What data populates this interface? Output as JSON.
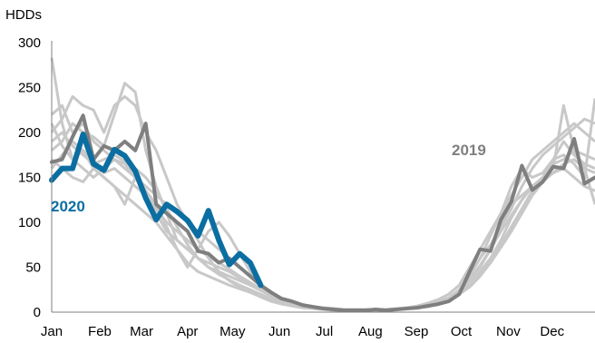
{
  "chart_data": {
    "type": "line",
    "title": "",
    "ylabel": "HDDs",
    "xlabel": "",
    "ylim": [
      0,
      300
    ],
    "xlim": [
      1,
      53
    ],
    "y_ticks": [
      "0",
      "50",
      "100",
      "150",
      "200",
      "250",
      "300"
    ],
    "x_ticks": [
      {
        "label": "Jan",
        "week": 1
      },
      {
        "label": "Feb",
        "week": 5.6
      },
      {
        "label": "Mar",
        "week": 9.6
      },
      {
        "label": "Apr",
        "week": 14.0
      },
      {
        "label": "May",
        "week": 18.3
      },
      {
        "label": "Jun",
        "week": 22.8
      },
      {
        "label": "Jul",
        "week": 27.1
      },
      {
        "label": "Aug",
        "week": 31.5
      },
      {
        "label": "Sep",
        "week": 35.9
      },
      {
        "label": "Oct",
        "week": 40.2
      },
      {
        "label": "Nov",
        "week": 44.7
      },
      {
        "label": "Dec",
        "week": 48.9
      }
    ],
    "grid": false,
    "colors": {
      "series_2020": "#0b6ea2",
      "series_2019": "#7f7f7f",
      "other_years": "#c8c8c8",
      "axis": "#7f7f7f"
    },
    "series": [
      {
        "name": "2020",
        "highlight": "primary",
        "x": [
          1,
          2,
          3,
          4,
          5,
          6,
          7,
          8,
          9,
          10,
          11,
          12,
          13,
          14,
          15,
          16,
          17,
          18,
          19,
          20,
          21
        ],
        "y": [
          147,
          160,
          160,
          198,
          165,
          158,
          181,
          174,
          157,
          127,
          103,
          120,
          112,
          102,
          85,
          113,
          80,
          53,
          65,
          55,
          30
        ]
      },
      {
        "name": "2019",
        "highlight": "secondary",
        "x": [
          1,
          2,
          3,
          4,
          5,
          6,
          7,
          8,
          9,
          10,
          11,
          12,
          13,
          14,
          15,
          16,
          17,
          18,
          19,
          20,
          21,
          22,
          23,
          24,
          25,
          26,
          27,
          28,
          29,
          30,
          31,
          32,
          33,
          34,
          35,
          36,
          37,
          38,
          39,
          40,
          41,
          42,
          43,
          44,
          45,
          46,
          47,
          48,
          49,
          50,
          51,
          52,
          53
        ],
        "y": [
          167,
          170,
          195,
          219,
          170,
          185,
          180,
          190,
          180,
          210,
          120,
          110,
          100,
          90,
          68,
          65,
          55,
          60,
          50,
          40,
          30,
          22,
          15,
          12,
          8,
          6,
          4,
          3,
          2,
          2,
          2,
          3,
          2,
          3,
          4,
          5,
          7,
          9,
          12,
          20,
          45,
          70,
          68,
          103,
          123,
          163,
          136,
          145,
          162,
          160,
          193,
          143,
          150
        ]
      },
      {
        "x": [
          1,
          2,
          3,
          4,
          5,
          6,
          7,
          8,
          9,
          10,
          11,
          12,
          13,
          14,
          15,
          16,
          17,
          18,
          19,
          20,
          21,
          22,
          23,
          24,
          25,
          26,
          27,
          28,
          29,
          30,
          31,
          32,
          33,
          34,
          35,
          36,
          37,
          38,
          39,
          40,
          41,
          42,
          43,
          44,
          45,
          46,
          47,
          48,
          49,
          50,
          51,
          52,
          53
        ],
        "y": [
          283,
          210,
          170,
          180,
          160,
          150,
          140,
          120,
          150,
          130,
          110,
          90,
          80,
          70,
          60,
          50,
          45,
          40,
          35,
          30,
          25,
          20,
          15,
          12,
          8,
          6,
          5,
          4,
          3,
          3,
          3,
          3,
          3,
          4,
          5,
          6,
          8,
          10,
          15,
          25,
          40,
          60,
          85,
          110,
          140,
          160,
          150,
          155,
          170,
          190,
          175,
          165,
          160
        ]
      },
      {
        "x": [
          1,
          2,
          3,
          4,
          5,
          6,
          7,
          8,
          9,
          10,
          11,
          12,
          13,
          14,
          15,
          16,
          17,
          18,
          19,
          20,
          21,
          22,
          23,
          24,
          25,
          26,
          27,
          28,
          29,
          30,
          31,
          32,
          33,
          34,
          35,
          36,
          37,
          38,
          39,
          40,
          41,
          42,
          43,
          44,
          45,
          46,
          47,
          48,
          49,
          50,
          51,
          52,
          53
        ],
        "y": [
          220,
          230,
          200,
          210,
          190,
          180,
          170,
          160,
          150,
          140,
          130,
          120,
          110,
          100,
          90,
          80,
          70,
          60,
          50,
          40,
          30,
          20,
          14,
          10,
          7,
          5,
          4,
          3,
          2,
          2,
          2,
          2,
          3,
          3,
          5,
          7,
          10,
          14,
          20,
          30,
          50,
          70,
          90,
          110,
          130,
          150,
          170,
          180,
          190,
          200,
          210,
          200,
          190
        ]
      },
      {
        "x": [
          1,
          2,
          3,
          4,
          5,
          6,
          7,
          8,
          9,
          10,
          11,
          12,
          13,
          14,
          15,
          16,
          17,
          18,
          19,
          20,
          21,
          22,
          23,
          24,
          25,
          26,
          27,
          28,
          29,
          30,
          31,
          32,
          33,
          34,
          35,
          36,
          37,
          38,
          39,
          40,
          41,
          42,
          43,
          44,
          45,
          46,
          47,
          48,
          49,
          50,
          51,
          52,
          53
        ],
        "y": [
          200,
          215,
          240,
          230,
          225,
          200,
          230,
          240,
          230,
          200,
          180,
          150,
          120,
          100,
          80,
          60,
          45,
          35,
          28,
          22,
          17,
          12,
          9,
          7,
          5,
          4,
          3,
          2,
          2,
          2,
          2,
          2,
          2,
          3,
          4,
          6,
          8,
          11,
          16,
          25,
          40,
          60,
          75,
          95,
          115,
          140,
          160,
          175,
          185,
          195,
          205,
          215,
          210
        ]
      },
      {
        "x": [
          1,
          2,
          3,
          4,
          5,
          6,
          7,
          8,
          9,
          10,
          11,
          12,
          13,
          14,
          15,
          16,
          17,
          18,
          19,
          20,
          21,
          22,
          23,
          24,
          25,
          26,
          27,
          28,
          29,
          30,
          31,
          32,
          33,
          34,
          35,
          36,
          37,
          38,
          39,
          40,
          41,
          42,
          43,
          44,
          45,
          46,
          47,
          48,
          49,
          50,
          51,
          52,
          53
        ],
        "y": [
          180,
          190,
          210,
          200,
          195,
          185,
          220,
          255,
          245,
          180,
          140,
          110,
          80,
          70,
          60,
          55,
          50,
          45,
          38,
          30,
          24,
          18,
          14,
          10,
          7,
          5,
          4,
          3,
          2,
          2,
          2,
          2,
          2,
          3,
          4,
          5,
          7,
          10,
          14,
          22,
          35,
          50,
          70,
          100,
          120,
          130,
          140,
          150,
          160,
          230,
          180,
          160,
          155
        ]
      },
      {
        "x": [
          1,
          2,
          3,
          4,
          5,
          6,
          7,
          8,
          9,
          10,
          11,
          12,
          13,
          14,
          15,
          16,
          17,
          18,
          19,
          20,
          21,
          22,
          23,
          24,
          25,
          26,
          27,
          28,
          29,
          30,
          31,
          32,
          33,
          34,
          35,
          36,
          37,
          38,
          39,
          40,
          41,
          42,
          43,
          44,
          45,
          46,
          47,
          48,
          49,
          50,
          51,
          52,
          53
        ],
        "y": [
          210,
          185,
          170,
          160,
          150,
          160,
          170,
          165,
          150,
          135,
          120,
          95,
          70,
          50,
          70,
          90,
          100,
          85,
          65,
          45,
          28,
          18,
          12,
          8,
          6,
          5,
          4,
          3,
          3,
          3,
          2,
          2,
          3,
          3,
          4,
          5,
          6,
          9,
          13,
          20,
          30,
          45,
          60,
          80,
          105,
          125,
          140,
          150,
          155,
          165,
          170,
          160,
          120
        ]
      },
      {
        "x": [
          1,
          2,
          3,
          4,
          5,
          6,
          7,
          8,
          9,
          10,
          11,
          12,
          13,
          14,
          15,
          16,
          17,
          18,
          19,
          20,
          21,
          22,
          23,
          24,
          25,
          26,
          27,
          28,
          29,
          30,
          31,
          32,
          33,
          34,
          35,
          36,
          37,
          38,
          39,
          40,
          41,
          42,
          43,
          44,
          45,
          46,
          47,
          48,
          49,
          50,
          51,
          52,
          53
        ],
        "y": [
          160,
          175,
          190,
          180,
          170,
          155,
          160,
          150,
          140,
          130,
          115,
          100,
          90,
          80,
          70,
          62,
          55,
          48,
          40,
          33,
          26,
          19,
          13,
          9,
          6,
          4,
          3,
          3,
          2,
          2,
          2,
          2,
          2,
          3,
          4,
          6,
          9,
          12,
          16,
          24,
          36,
          52,
          70,
          90,
          108,
          125,
          140,
          150,
          170,
          175,
          165,
          150,
          238
        ]
      },
      {
        "x": [
          1,
          2,
          3,
          4,
          5,
          6,
          7,
          8,
          9,
          10,
          11,
          12,
          13,
          14,
          15,
          16,
          17,
          18,
          19,
          20,
          21,
          22,
          23,
          24,
          25,
          26,
          27,
          28,
          29,
          30,
          31,
          32,
          33,
          34,
          35,
          36,
          37,
          38,
          39,
          40,
          41,
          42,
          43,
          44,
          45,
          46,
          47,
          48,
          49,
          50,
          51,
          52,
          53
        ],
        "y": [
          170,
          160,
          150,
          145,
          160,
          150,
          140,
          130,
          120,
          110,
          100,
          85,
          70,
          55,
          45,
          40,
          35,
          30,
          26,
          22,
          18,
          14,
          10,
          7,
          5,
          4,
          3,
          2,
          2,
          2,
          2,
          2,
          2,
          3,
          4,
          5,
          8,
          11,
          15,
          22,
          30,
          42,
          55,
          75,
          95,
          115,
          135,
          150,
          165,
          170,
          180,
          175,
          170
        ]
      },
      {
        "x": [
          1,
          2,
          3,
          4,
          5,
          6,
          7,
          8,
          9,
          10,
          11,
          12,
          13,
          14,
          15,
          16,
          17,
          18,
          19,
          20,
          21,
          22,
          23,
          24,
          25,
          26,
          27,
          28,
          29,
          30,
          31,
          32,
          33,
          34,
          35,
          36,
          37,
          38,
          39,
          40,
          41,
          42,
          43,
          44,
          45,
          46,
          47,
          48,
          49,
          50,
          51,
          52,
          53
        ],
        "y": [
          190,
          200,
          185,
          175,
          165,
          170,
          175,
          168,
          160,
          150,
          135,
          115,
          95,
          75,
          60,
          50,
          42,
          36,
          30,
          25,
          20,
          15,
          11,
          8,
          6,
          4,
          3,
          3,
          2,
          2,
          2,
          2,
          2,
          3,
          4,
          5,
          7,
          10,
          14,
          20,
          28,
          40,
          55,
          72,
          90,
          110,
          130,
          145,
          155,
          160,
          150,
          140,
          135
        ]
      }
    ],
    "annotations": [
      {
        "text": "2020",
        "series": "2020"
      },
      {
        "text": "2019",
        "series": "2019"
      }
    ]
  }
}
